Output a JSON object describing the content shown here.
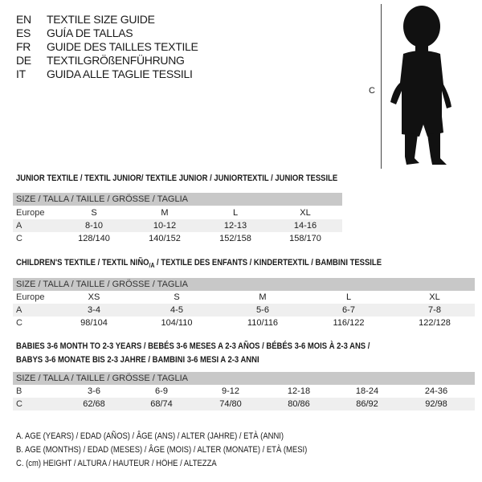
{
  "languages": [
    {
      "code": "EN",
      "name": "TEXTILE SIZE GUIDE"
    },
    {
      "code": "ES",
      "name": "GUÍA DE TALLAS"
    },
    {
      "code": "FR",
      "name": "GUIDE DES TAILLES TEXTILE"
    },
    {
      "code": "DE",
      "name": "TEXTILGRÖßENFÜHRUNG"
    },
    {
      "code": "IT",
      "name": "GUIDA ALLE TAGLIE TESSILI"
    }
  ],
  "figure": {
    "measure_label": "C"
  },
  "junior": {
    "title": "JUNIOR TEXTILE / TEXTIL JUNIOR/ TEXTILE JUNIOR / JUNIORTEXTIL / JUNIOR TESSILE",
    "header": "SIZE / TALLA / TAILLE / GRÖSSE / TAGLIA",
    "rows": [
      {
        "label": "Europe",
        "cells": [
          "S",
          "M",
          "L",
          "XL"
        ]
      },
      {
        "label": "A",
        "cells": [
          "8-10",
          "10-12",
          "12-13",
          "14-16"
        ]
      },
      {
        "label": "C",
        "cells": [
          "128/140",
          "140/152",
          "152/158",
          "158/170"
        ]
      }
    ]
  },
  "children": {
    "title_main": "CHILDREN'S TEXTILE / TEXTIL NIÑO",
    "title_sub": "/A",
    "title_rest": " / TEXTILE DES ENFANTS / KINDERTEXTIL / BAMBINI TESSILE",
    "header": "SIZE / TALLA / TAILLE / GRÖSSE / TAGLIA",
    "rows": [
      {
        "label": "Europe",
        "cells": [
          "XS",
          "S",
          "M",
          "L",
          "XL"
        ]
      },
      {
        "label": "A",
        "cells": [
          "3-4",
          "4-5",
          "5-6",
          "6-7",
          "7-8"
        ]
      },
      {
        "label": "C",
        "cells": [
          "98/104",
          "104/110",
          "110/116",
          "116/122",
          "122/128"
        ]
      }
    ]
  },
  "babies": {
    "title_line1": "BABIES 3-6 MONTH TO 2-3 YEARS / BEBÉS 3-6 MESES A 2-3 AÑOS / BÉBÉS 3-6 MOIS À 2-3 ANS /",
    "title_line2": "BABYS 3-6 MONATE BIS 2-3 JAHRE / BAMBINI 3-6 MESI A 2-3 ANNI",
    "header": "SIZE / TALLA / TAILLE / GRÖSSE / TAGLIA",
    "rows": [
      {
        "label": "B",
        "cells": [
          "3-6",
          "6-9",
          "9-12",
          "12-18",
          "18-24",
          "24-36"
        ]
      },
      {
        "label": "C",
        "cells": [
          "62/68",
          "68/74",
          "74/80",
          "80/86",
          "86/92",
          "92/98"
        ]
      }
    ]
  },
  "legend": [
    "A. AGE (YEARS) / EDAD (AÑOS) / ÂGE (ANS) / ALTER (JAHRE) / ETÀ (ANNI)",
    "B. AGE (MONTHS) / EDAD (MESES) / ÂGE (MOIS) / ALTER (MONATE) / ETÀ (MESI)",
    "C. (cm) HEIGHT / ALTURA / HAUTEUR / HÖHE / ALTEZZA"
  ]
}
